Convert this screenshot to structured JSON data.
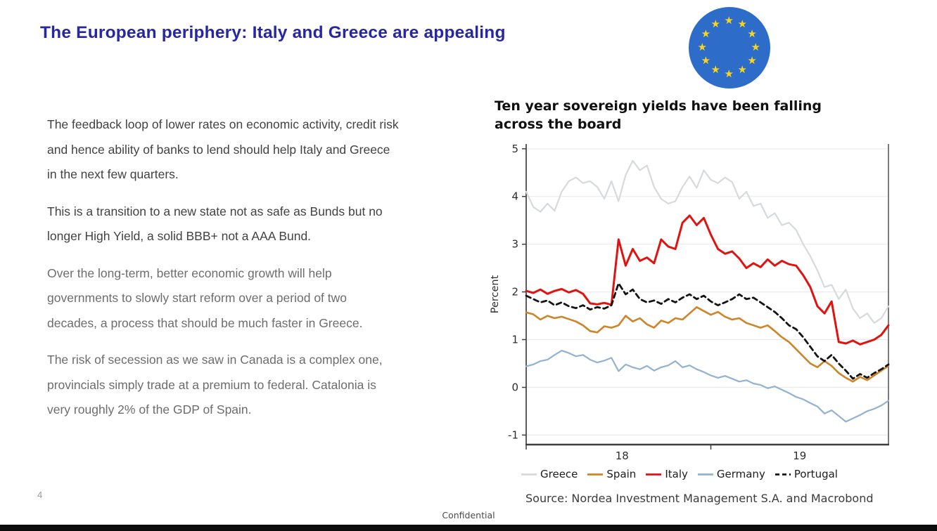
{
  "slide": {
    "title": "The European periphery: Italy and Greece are appealing",
    "page_number": "4",
    "footer": "Confidential"
  },
  "main": {
    "paragraphs": [
      {
        "text": "The feedback loop of lower rates on economic activity, credit risk\nand hence ability of banks to lend should help Italy and Greece\nin the next few quarters.",
        "tone": "dark"
      },
      {
        "text": "This is a transition to a new state not as safe as Bunds but no\nlonger High Yield, a solid BBB+ not a AAA Bund.",
        "tone": "dark"
      },
      {
        "text": "Over the long-term, better economic growth will help\ngovernments to slowly start reform over a period of two\ndecades, a process that should be much faster in Greece.",
        "tone": "muted"
      },
      {
        "text": "The risk of secession as we saw in Canada is a complex one,\nprovincials simply trade at a premium to federal. Catalonia is\nvery roughly 2% of the GDP of Spain.",
        "tone": "muted"
      }
    ]
  },
  "chart": {
    "heading": "Ten year sovereign yields have been falling\nacross the board",
    "source": "Source: Nordea Investment Management S.A. and Macrobond"
  },
  "colors": {
    "title_blue": "#2727a3",
    "eu_flag_blue": "#2e6cca",
    "eu_star_yellow": "#f8d41f",
    "bottom_bar": "#0c0c0c",
    "gridline": "#ebebeb",
    "axis": "#3f3f3f"
  },
  "chart_data": {
    "type": "line",
    "title": "Ten year sovereign yields have been falling across the board",
    "xlabel": "",
    "ylabel": "Percent",
    "ylim": [
      -1.2,
      5.1
    ],
    "yticks": [
      -1,
      0,
      1,
      2,
      3,
      4,
      5
    ],
    "xlim": [
      2017.96,
      2020.0
    ],
    "xticks": [
      2017.96,
      2019.0
    ],
    "xtick_labels": [
      {
        "pos": 2018.5,
        "text": "18"
      },
      {
        "pos": 2019.5,
        "text": "19"
      }
    ],
    "grid": true,
    "legend_position": "bottom",
    "x_start": 2017.96,
    "x_step": 0.04,
    "series": [
      {
        "name": "Greece",
        "color": "#d6dadc",
        "width": 2.2,
        "dash": null,
        "values": [
          4.1,
          3.78,
          3.68,
          3.85,
          3.7,
          4.1,
          4.32,
          4.4,
          4.28,
          4.32,
          4.2,
          3.95,
          4.32,
          3.9,
          4.45,
          4.75,
          4.55,
          4.65,
          4.2,
          3.95,
          3.85,
          3.9,
          4.2,
          4.42,
          4.18,
          4.55,
          4.35,
          4.28,
          4.4,
          4.3,
          3.95,
          4.1,
          3.8,
          3.85,
          3.55,
          3.65,
          3.4,
          3.45,
          3.3,
          3.0,
          2.75,
          2.45,
          2.1,
          2.15,
          1.85,
          2.05,
          1.65,
          1.45,
          1.55,
          1.35,
          1.45,
          1.7
        ]
      },
      {
        "name": "Spain",
        "color": "#cf8428",
        "width": 2.6,
        "dash": null,
        "values": [
          1.57,
          1.53,
          1.42,
          1.5,
          1.45,
          1.48,
          1.43,
          1.38,
          1.3,
          1.18,
          1.15,
          1.28,
          1.25,
          1.3,
          1.5,
          1.38,
          1.45,
          1.32,
          1.25,
          1.4,
          1.35,
          1.45,
          1.42,
          1.55,
          1.68,
          1.6,
          1.52,
          1.58,
          1.48,
          1.42,
          1.45,
          1.35,
          1.3,
          1.25,
          1.3,
          1.18,
          1.05,
          0.95,
          0.8,
          0.65,
          0.5,
          0.42,
          0.55,
          0.45,
          0.3,
          0.2,
          0.12,
          0.22,
          0.15,
          0.25,
          0.35,
          0.45
        ]
      },
      {
        "name": "Italy",
        "color": "#e01310",
        "width": 3,
        "dash": null,
        "values": [
          2.02,
          1.98,
          2.05,
          1.96,
          2.02,
          2.06,
          1.99,
          2.04,
          1.96,
          1.76,
          1.74,
          1.77,
          1.73,
          3.1,
          2.55,
          2.9,
          2.65,
          2.72,
          2.6,
          3.1,
          2.95,
          2.9,
          3.45,
          3.6,
          3.4,
          3.55,
          3.2,
          2.9,
          2.8,
          2.85,
          2.7,
          2.5,
          2.6,
          2.52,
          2.68,
          2.55,
          2.65,
          2.58,
          2.55,
          2.35,
          2.1,
          1.7,
          1.55,
          1.8,
          0.95,
          0.92,
          0.98,
          0.9,
          0.95,
          1.0,
          1.1,
          1.3
        ]
      },
      {
        "name": "Germany",
        "color": "#92b2d2",
        "width": 2.2,
        "dash": null,
        "values": [
          0.44,
          0.48,
          0.55,
          0.58,
          0.68,
          0.77,
          0.72,
          0.65,
          0.68,
          0.58,
          0.52,
          0.56,
          0.62,
          0.34,
          0.48,
          0.42,
          0.38,
          0.45,
          0.35,
          0.42,
          0.46,
          0.55,
          0.42,
          0.46,
          0.38,
          0.32,
          0.25,
          0.2,
          0.24,
          0.18,
          0.12,
          0.15,
          0.08,
          0.05,
          -0.02,
          0.02,
          -0.05,
          -0.12,
          -0.2,
          -0.25,
          -0.33,
          -0.4,
          -0.55,
          -0.48,
          -0.6,
          -0.72,
          -0.65,
          -0.58,
          -0.5,
          -0.45,
          -0.38,
          -0.28
        ]
      },
      {
        "name": "Portugal",
        "color": "#141414",
        "width": 2.8,
        "dash": "7 5",
        "values": [
          1.92,
          1.85,
          1.78,
          1.82,
          1.72,
          1.78,
          1.7,
          1.66,
          1.72,
          1.63,
          1.68,
          1.65,
          1.72,
          2.18,
          1.95,
          2.05,
          1.85,
          1.78,
          1.82,
          1.75,
          1.85,
          1.78,
          1.88,
          1.95,
          1.85,
          1.92,
          1.8,
          1.72,
          1.78,
          1.85,
          1.95,
          1.85,
          1.88,
          1.78,
          1.68,
          1.58,
          1.45,
          1.3,
          1.22,
          1.05,
          0.85,
          0.65,
          0.55,
          0.68,
          0.5,
          0.35,
          0.18,
          0.28,
          0.2,
          0.3,
          0.38,
          0.48
        ]
      }
    ]
  }
}
